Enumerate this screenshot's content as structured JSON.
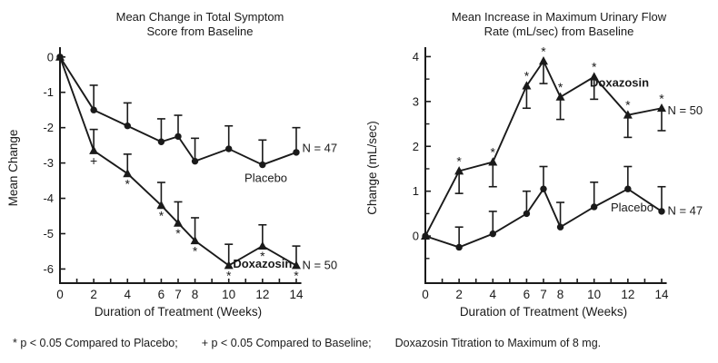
{
  "page": {
    "ink": "#1a1a1a",
    "background": "#ffffff",
    "footer": {
      "note1": "* p < 0.05 Compared to Placebo;",
      "note2": "+ p < 0.05 Compared to Baseline;",
      "note3": "Doxazosin Titration to Maximum of 8 mg."
    }
  },
  "chart_data": [
    {
      "type": "line",
      "title": "Mean Change in Total Symptom\nScore from Baseline",
      "xlabel": "Duration of Treatment (Weeks)",
      "ylabel": "Mean Change",
      "x": [
        0,
        2,
        4,
        6,
        7,
        8,
        10,
        12,
        14
      ],
      "xlim": [
        0,
        14.3
      ],
      "ylim": [
        -6.4,
        0.2
      ],
      "xticks_minor": [
        1,
        3,
        5,
        9,
        11,
        13
      ],
      "xtick_labels": [
        "0",
        "2",
        "4",
        "6",
        "7",
        "8",
        "10",
        "12",
        "14"
      ],
      "yticks_major": [
        0,
        -1,
        -2,
        -3,
        -4,
        -5,
        -6
      ],
      "ytick_labels": [
        "0",
        "-1",
        "-2",
        "-3",
        "-4",
        "-5",
        "-6"
      ],
      "yticks_minor": [],
      "grid": false,
      "series": [
        {
          "name": "Placebo",
          "marker": "circle",
          "n_label": "N = 47",
          "values": [
            0,
            -1.5,
            -1.95,
            -2.4,
            -2.25,
            -2.95,
            -2.6,
            -3.05,
            -2.7
          ],
          "err": [
            0,
            0.7,
            0.65,
            0.65,
            0.6,
            0.65,
            0.65,
            0.7,
            0.7
          ],
          "err_dir": "up",
          "sig": [
            "",
            "",
            "",
            "",
            "",
            "",
            "",
            "",
            ""
          ],
          "sig_pos": "below"
        },
        {
          "name": "Doxazosin",
          "marker": "triangle",
          "n_label": "N = 50",
          "values": [
            0,
            -2.65,
            -3.3,
            -4.2,
            -4.7,
            -5.2,
            -5.9,
            -5.35,
            -5.9
          ],
          "err": [
            0,
            0.6,
            0.55,
            0.65,
            0.6,
            0.65,
            0.6,
            0.6,
            0.55
          ],
          "err_dir": "up",
          "sig": [
            "",
            "+",
            "*",
            "*",
            "*",
            "*",
            "*",
            "*",
            "*"
          ],
          "sig_pos": "below"
        }
      ],
      "annotations": [
        {
          "text": "Placebo",
          "x": 12.2,
          "y": -3.45,
          "bold": false,
          "anchor": "middle"
        },
        {
          "text": "N = 47",
          "x": 14.35,
          "y": -2.6,
          "bold": false,
          "anchor": "start"
        },
        {
          "text": "Doxazosin",
          "x": 12.0,
          "y": -5.88,
          "bold": true,
          "anchor": "middle"
        },
        {
          "text": "N = 50",
          "x": 14.35,
          "y": -5.92,
          "bold": false,
          "anchor": "start"
        }
      ]
    },
    {
      "type": "line",
      "title": "Mean Increase in Maximum Urinary Flow\nRate (mL/sec) from Baseline",
      "xlabel": "Duration of Treatment (Weeks)",
      "ylabel": "Change (mL/sec)",
      "x": [
        0,
        2,
        4,
        6,
        7,
        8,
        10,
        12,
        14
      ],
      "xlim": [
        0,
        14.3
      ],
      "ylim": [
        -1.05,
        4.15
      ],
      "xticks_minor": [
        1,
        3,
        5,
        9,
        11,
        13
      ],
      "xtick_labels": [
        "0",
        "2",
        "4",
        "6",
        "7",
        "8",
        "10",
        "12",
        "14"
      ],
      "yticks_major": [
        4,
        3,
        2,
        1,
        0
      ],
      "ytick_labels": [
        "4",
        "3",
        "2",
        "1",
        "0"
      ],
      "yticks_minor": [
        3.5,
        2.5,
        1.5,
        0.5,
        -0.5
      ],
      "grid": false,
      "series": [
        {
          "name": "Doxazosin",
          "marker": "triangle",
          "n_label": "N = 50",
          "values": [
            0,
            1.45,
            1.65,
            3.35,
            3.9,
            3.1,
            3.55,
            2.7,
            2.85
          ],
          "err": [
            0,
            0.5,
            0.55,
            0.5,
            0.5,
            0.5,
            0.5,
            0.5,
            0.5
          ],
          "err_dir": "down",
          "sig": [
            "",
            "*",
            "*",
            "*",
            "*",
            "*",
            "*",
            "*",
            "*"
          ],
          "sig_pos": "above"
        },
        {
          "name": "Placebo",
          "marker": "circle",
          "n_label": "N = 47",
          "values": [
            0,
            -0.25,
            0.05,
            0.5,
            1.05,
            0.2,
            0.65,
            1.05,
            0.55
          ],
          "err": [
            0,
            0.45,
            0.5,
            0.5,
            0.5,
            0.55,
            0.55,
            0.5,
            0.55
          ],
          "err_dir": "up",
          "sig": [
            "",
            "",
            "",
            "",
            "",
            "",
            "",
            "",
            ""
          ],
          "sig_pos": "above"
        }
      ],
      "annotations": [
        {
          "text": "Doxazosin",
          "x": 11.5,
          "y": 3.4,
          "bold": true,
          "anchor": "middle"
        },
        {
          "text": "N = 50",
          "x": 14.35,
          "y": 2.78,
          "bold": false,
          "anchor": "start"
        },
        {
          "text": "Placebo",
          "x": 12.25,
          "y": 0.62,
          "bold": false,
          "anchor": "middle"
        },
        {
          "text": "N = 47",
          "x": 14.35,
          "y": 0.55,
          "bold": false,
          "anchor": "start"
        }
      ]
    }
  ]
}
